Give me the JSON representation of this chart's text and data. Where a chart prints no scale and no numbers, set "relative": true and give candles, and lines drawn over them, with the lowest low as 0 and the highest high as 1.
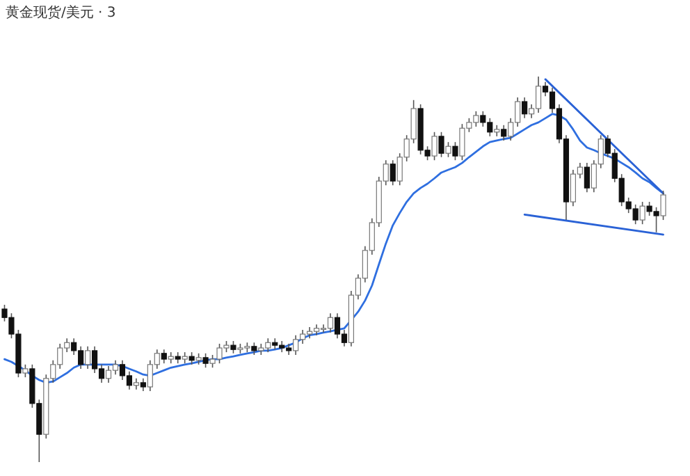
{
  "chart_data": {
    "type": "candlestick",
    "title": "黄金现货/美元 · 3",
    "relative": true,
    "grid": false,
    "categories": [
      null,
      null,
      null,
      null,
      null,
      null,
      null,
      null,
      null,
      null,
      null,
      null,
      null,
      null,
      null,
      null,
      null,
      null,
      null,
      null,
      null,
      null,
      null,
      null,
      null,
      null,
      null,
      null,
      null,
      null,
      null,
      null,
      null,
      null,
      null,
      null,
      null,
      null,
      null,
      null,
      null,
      null,
      null,
      null,
      null,
      null,
      null,
      null,
      null,
      null,
      null,
      null,
      null,
      null,
      null,
      null,
      null,
      null,
      null,
      null,
      null,
      null,
      null,
      null,
      null,
      null,
      null,
      null,
      null,
      null,
      null,
      null,
      null,
      null,
      null,
      null,
      null,
      null,
      null,
      null,
      null,
      null,
      null,
      null,
      null,
      null,
      null,
      null,
      null,
      null,
      null,
      null,
      null,
      null,
      null,
      null
    ],
    "ohlc": [
      [
        0.397,
        0.408,
        0.365,
        0.375
      ],
      [
        0.375,
        0.386,
        0.321,
        0.332
      ],
      [
        0.332,
        0.343,
        0.22,
        0.231
      ],
      [
        0.231,
        0.253,
        0.22,
        0.242
      ],
      [
        0.242,
        0.253,
        0.141,
        0.152
      ],
      [
        0.152,
        0.162,
        0,
        0.072
      ],
      [
        0.072,
        0.227,
        0.061,
        0.217
      ],
      [
        0.217,
        0.264,
        0.206,
        0.253
      ],
      [
        0.253,
        0.307,
        0.242,
        0.296
      ],
      [
        0.296,
        0.321,
        0.285,
        0.31
      ],
      [
        0.31,
        0.321,
        0.278,
        0.289
      ],
      [
        0.289,
        0.3,
        0.242,
        0.253
      ],
      [
        0.253,
        0.3,
        0.242,
        0.289
      ],
      [
        0.289,
        0.3,
        0.231,
        0.242
      ],
      [
        0.242,
        0.253,
        0.206,
        0.217
      ],
      [
        0.217,
        0.249,
        0.206,
        0.238
      ],
      [
        0.238,
        0.264,
        0.227,
        0.253
      ],
      [
        0.253,
        0.264,
        0.213,
        0.224
      ],
      [
        0.224,
        0.235,
        0.188,
        0.199
      ],
      [
        0.199,
        0.217,
        0.188,
        0.206
      ],
      [
        0.206,
        0.217,
        0.184,
        0.195
      ],
      [
        0.195,
        0.264,
        0.184,
        0.253
      ],
      [
        0.253,
        0.292,
        0.242,
        0.282
      ],
      [
        0.282,
        0.292,
        0.256,
        0.267
      ],
      [
        0.267,
        0.285,
        0.256,
        0.274
      ],
      [
        0.274,
        0.285,
        0.256,
        0.267
      ],
      [
        0.267,
        0.285,
        0.256,
        0.274
      ],
      [
        0.274,
        0.285,
        0.253,
        0.264
      ],
      [
        0.264,
        0.282,
        0.253,
        0.271
      ],
      [
        0.271,
        0.282,
        0.245,
        0.256
      ],
      [
        0.256,
        0.278,
        0.245,
        0.267
      ],
      [
        0.267,
        0.307,
        0.256,
        0.296
      ],
      [
        0.296,
        0.314,
        0.285,
        0.303
      ],
      [
        0.303,
        0.314,
        0.282,
        0.292
      ],
      [
        0.292,
        0.307,
        0.282,
        0.296
      ],
      [
        0.296,
        0.31,
        0.285,
        0.3
      ],
      [
        0.3,
        0.31,
        0.278,
        0.289
      ],
      [
        0.289,
        0.307,
        0.278,
        0.296
      ],
      [
        0.296,
        0.321,
        0.285,
        0.31
      ],
      [
        0.31,
        0.321,
        0.292,
        0.303
      ],
      [
        0.303,
        0.314,
        0.285,
        0.296
      ],
      [
        0.296,
        0.307,
        0.278,
        0.289
      ],
      [
        0.289,
        0.329,
        0.278,
        0.318
      ],
      [
        0.318,
        0.343,
        0.307,
        0.332
      ],
      [
        0.332,
        0.35,
        0.321,
        0.339
      ],
      [
        0.339,
        0.357,
        0.329,
        0.347
      ],
      [
        0.347,
        0.357,
        0.336,
        0.347
      ],
      [
        0.347,
        0.386,
        0.336,
        0.375
      ],
      [
        0.375,
        0.386,
        0.321,
        0.332
      ],
      [
        0.332,
        0.343,
        0.3,
        0.31
      ],
      [
        0.31,
        0.444,
        0.3,
        0.433
      ],
      [
        0.433,
        0.487,
        0.422,
        0.477
      ],
      [
        0.477,
        0.56,
        0.466,
        0.549
      ],
      [
        0.549,
        0.632,
        0.538,
        0.621
      ],
      [
        0.621,
        0.74,
        0.61,
        0.729
      ],
      [
        0.729,
        0.783,
        0.718,
        0.773
      ],
      [
        0.773,
        0.783,
        0.718,
        0.729
      ],
      [
        0.729,
        0.801,
        0.718,
        0.791
      ],
      [
        0.791,
        0.848,
        0.78,
        0.838
      ],
      [
        0.838,
        0.939,
        0.827,
        0.917
      ],
      [
        0.917,
        0.928,
        0.798,
        0.809
      ],
      [
        0.809,
        0.819,
        0.783,
        0.794
      ],
      [
        0.794,
        0.856,
        0.783,
        0.845
      ],
      [
        0.845,
        0.856,
        0.791,
        0.801
      ],
      [
        0.801,
        0.83,
        0.791,
        0.819
      ],
      [
        0.819,
        0.83,
        0.783,
        0.794
      ],
      [
        0.794,
        0.877,
        0.783,
        0.866
      ],
      [
        0.866,
        0.892,
        0.856,
        0.881
      ],
      [
        0.881,
        0.91,
        0.87,
        0.899
      ],
      [
        0.899,
        0.91,
        0.87,
        0.881
      ],
      [
        0.881,
        0.892,
        0.845,
        0.856
      ],
      [
        0.856,
        0.874,
        0.845,
        0.863
      ],
      [
        0.863,
        0.874,
        0.834,
        0.845
      ],
      [
        0.845,
        0.892,
        0.834,
        0.881
      ],
      [
        0.881,
        0.946,
        0.87,
        0.935
      ],
      [
        0.935,
        0.946,
        0.892,
        0.903
      ],
      [
        0.903,
        0.928,
        0.892,
        0.917
      ],
      [
        0.917,
        1,
        0.906,
        0.975
      ],
      [
        0.975,
        0.986,
        0.949,
        0.96
      ],
      [
        0.96,
        0.971,
        0.906,
        0.917
      ],
      [
        0.917,
        0.928,
        0.827,
        0.838
      ],
      [
        0.838,
        0.848,
        0.628,
        0.675
      ],
      [
        0.675,
        0.758,
        0.664,
        0.747
      ],
      [
        0.747,
        0.776,
        0.736,
        0.765
      ],
      [
        0.765,
        0.776,
        0.7,
        0.711
      ],
      [
        0.711,
        0.783,
        0.7,
        0.773
      ],
      [
        0.773,
        0.848,
        0.762,
        0.838
      ],
      [
        0.838,
        0.848,
        0.791,
        0.801
      ],
      [
        0.801,
        0.812,
        0.726,
        0.736
      ],
      [
        0.736,
        0.747,
        0.664,
        0.675
      ],
      [
        0.675,
        0.686,
        0.646,
        0.657
      ],
      [
        0.657,
        0.668,
        0.617,
        0.628
      ],
      [
        0.628,
        0.675,
        0.617,
        0.664
      ],
      [
        0.664,
        0.675,
        0.639,
        0.65
      ],
      [
        0.65,
        0.661,
        0.596,
        0.639
      ],
      [
        0.639,
        0.704,
        0.628,
        0.693
      ]
    ],
    "series": [
      {
        "type": "line",
        "color": "#2f6fe0",
        "values": [
          0.267,
          0.26,
          0.249,
          0.238,
          0.224,
          0.213,
          0.206,
          0.209,
          0.22,
          0.231,
          0.245,
          0.253,
          0.253,
          0.253,
          0.253,
          0.253,
          0.253,
          0.249,
          0.242,
          0.235,
          0.227,
          0.224,
          0.231,
          0.238,
          0.245,
          0.249,
          0.253,
          0.256,
          0.26,
          0.264,
          0.267,
          0.267,
          0.271,
          0.274,
          0.278,
          0.282,
          0.285,
          0.289,
          0.289,
          0.292,
          0.296,
          0.303,
          0.31,
          0.321,
          0.329,
          0.332,
          0.336,
          0.339,
          0.343,
          0.347,
          0.368,
          0.39,
          0.419,
          0.458,
          0.513,
          0.567,
          0.614,
          0.646,
          0.675,
          0.697,
          0.711,
          0.722,
          0.736,
          0.751,
          0.758,
          0.765,
          0.776,
          0.791,
          0.805,
          0.819,
          0.83,
          0.834,
          0.838,
          0.841,
          0.852,
          0.863,
          0.874,
          0.881,
          0.892,
          0.903,
          0.899,
          0.888,
          0.863,
          0.834,
          0.816,
          0.809,
          0.801,
          0.794,
          0.787,
          0.776,
          0.765,
          0.751,
          0.736,
          0.726,
          0.711,
          0.697
        ]
      },
      {
        "type": "line",
        "color": "#2a62d6",
        "values": [
          null,
          null,
          null,
          null,
          null,
          null,
          null,
          null,
          null,
          null,
          null,
          null,
          null,
          null,
          null,
          null,
          null,
          null,
          null,
          null,
          null,
          null,
          null,
          null,
          null,
          null,
          null,
          null,
          null,
          null,
          null,
          null,
          null,
          null,
          null,
          null,
          null,
          null,
          null,
          null,
          null,
          null,
          null,
          null,
          null,
          null,
          null,
          null,
          null,
          null,
          null,
          null,
          null,
          null,
          null,
          null,
          null,
          null,
          null,
          null,
          null,
          null,
          null,
          null,
          null,
          null,
          null,
          null,
          null,
          null,
          null,
          null,
          null,
          null,
          null,
          null,
          null,
          null,
          0.993,
          null,
          null,
          null,
          null,
          null,
          null,
          null,
          null,
          null,
          null,
          null,
          null,
          null,
          null,
          null,
          null,
          0.697
        ]
      },
      {
        "type": "line",
        "color": "#2a62d6",
        "values": [
          null,
          null,
          null,
          null,
          null,
          null,
          null,
          null,
          null,
          null,
          null,
          null,
          null,
          null,
          null,
          null,
          null,
          null,
          null,
          null,
          null,
          null,
          null,
          null,
          null,
          null,
          null,
          null,
          null,
          null,
          null,
          null,
          null,
          null,
          null,
          null,
          null,
          null,
          null,
          null,
          null,
          null,
          null,
          null,
          null,
          null,
          null,
          null,
          null,
          null,
          null,
          null,
          null,
          null,
          null,
          null,
          null,
          null,
          null,
          null,
          null,
          null,
          null,
          null,
          null,
          null,
          null,
          null,
          null,
          null,
          null,
          null,
          null,
          null,
          null,
          0.642,
          null,
          null,
          null,
          null,
          null,
          null,
          null,
          null,
          null,
          null,
          null,
          null,
          null,
          null,
          null,
          null,
          null,
          null,
          null,
          0.59
        ]
      }
    ]
  }
}
